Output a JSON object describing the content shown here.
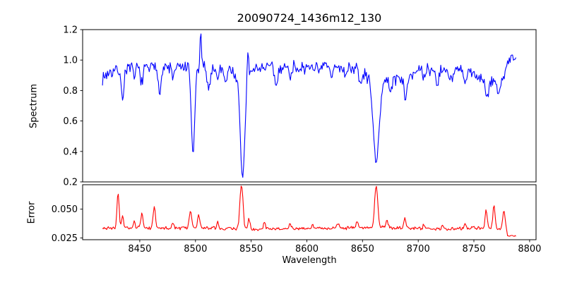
{
  "window": {
    "kind": "matplotlib-style-figure",
    "background": "#ffffff"
  },
  "chart_data": {
    "type": "line",
    "title": "20090724_1436m12_130",
    "xlabel": "Wavelength",
    "xlim": [
      8398.7,
      8805.8
    ],
    "xticks": [
      {
        "v": 8450,
        "label": "8450"
      },
      {
        "v": 8500,
        "label": "8500"
      },
      {
        "v": 8550,
        "label": "8550"
      },
      {
        "v": 8600,
        "label": "8600"
      },
      {
        "v": 8650,
        "label": "8650"
      },
      {
        "v": 8700,
        "label": "8700"
      },
      {
        "v": 8750,
        "label": "8750"
      },
      {
        "v": 8800,
        "label": "8800"
      }
    ],
    "grid": false,
    "legend": null,
    "panels": [
      {
        "name": "spectrum",
        "ylabel": "Spectrum",
        "yscale": "linear",
        "ylim": [
          0.2,
          1.2
        ],
        "yticks": [
          {
            "v": 0.2,
            "label": "0.2"
          },
          {
            "v": 0.4,
            "label": "0.4"
          },
          {
            "v": 0.6,
            "label": "0.6"
          },
          {
            "v": 0.8,
            "label": "0.8"
          },
          {
            "v": 1.0,
            "label": "1.0"
          },
          {
            "v": 1.2,
            "label": "1.2"
          }
        ],
        "color": "#0000ff",
        "series": {
          "description": "normalized stellar spectrum, noisy continuum near 1.0 with CaII-triplet absorption dips at 8498/8542/8662",
          "x_start": 8416.5,
          "x_end": 8788,
          "x_step": 0.75,
          "seed": 7,
          "noise_amp": 0.055,
          "continuum_keypoints": [
            [
              8416.5,
              0.88
            ],
            [
              8422,
              0.92
            ],
            [
              8435,
              0.94
            ],
            [
              8450,
              0.945
            ],
            [
              8470,
              0.95
            ],
            [
              8490,
              0.95
            ],
            [
              8510,
              0.945
            ],
            [
              8530,
              0.95
            ],
            [
              8550,
              0.955
            ],
            [
              8570,
              0.95
            ],
            [
              8590,
              0.955
            ],
            [
              8610,
              0.96
            ],
            [
              8630,
              0.955
            ],
            [
              8645,
              0.945
            ],
            [
              8658,
              0.92
            ],
            [
              8670,
              0.9
            ],
            [
              8682,
              0.88
            ],
            [
              8695,
              0.92
            ],
            [
              8710,
              0.935
            ],
            [
              8725,
              0.93
            ],
            [
              8740,
              0.925
            ],
            [
              8752,
              0.9
            ],
            [
              8765,
              0.875
            ],
            [
              8776,
              0.88
            ],
            [
              8781,
              1.0
            ],
            [
              8788,
              1.01
            ]
          ],
          "absorption_lines_center_depth_sigma": [
            [
              8434.5,
              0.22,
              1.0
            ],
            [
              8445,
              0.06,
              0.9
            ],
            [
              8452,
              0.1,
              1.0
            ],
            [
              8468,
              0.14,
              1.3
            ],
            [
              8480,
              0.07,
              1.0
            ],
            [
              8497.8,
              0.57,
              1.5
            ],
            [
              8512,
              0.14,
              1.2
            ],
            [
              8520,
              0.07,
              1.0
            ],
            [
              8527,
              0.09,
              1.1
            ],
            [
              8542.3,
              0.62,
              2.0
            ],
            [
              8542.3,
              0.1,
              5.5
            ],
            [
              8572.5,
              0.13,
              1.2
            ],
            [
              8585,
              0.06,
              1.0
            ],
            [
              8598,
              0.06,
              1.0
            ],
            [
              8611,
              0.07,
              1.0
            ],
            [
              8622,
              0.08,
              1.1
            ],
            [
              8634,
              0.05,
              1.0
            ],
            [
              8648.5,
              0.09,
              1.4
            ],
            [
              8662.3,
              0.52,
              2.4
            ],
            [
              8662.3,
              0.08,
              6.5
            ],
            [
              8675,
              0.07,
              1.5
            ],
            [
              8688.5,
              0.18,
              1.2
            ],
            [
              8705,
              0.06,
              1.0
            ],
            [
              8717,
              0.09,
              1.2
            ],
            [
              8730,
              0.07,
              1.1
            ],
            [
              8742,
              0.07,
              1.1
            ],
            [
              8762,
              0.13,
              1.8
            ],
            [
              8772,
              0.11,
              1.4
            ]
          ],
          "emission_spikes_center_height_sigma": [
            [
              8504.8,
              0.21,
              0.7
            ],
            [
              8547.0,
              0.22,
              0.7
            ]
          ]
        }
      },
      {
        "name": "error",
        "ylabel": "Error",
        "yscale": "log",
        "ylim": [
          0.024,
          0.09
        ],
        "yticks": [
          {
            "v": 0.05,
            "label": "0.050"
          },
          {
            "v": 0.025,
            "label": "0.025"
          }
        ],
        "color": "#ff0000",
        "series": {
          "description": "error spectrum, baseline ~0.032 with spikes at absorption-line wavelengths, drop to ~0.026 past 8780",
          "x_start": 8416.5,
          "x_end": 8788,
          "x_step": 0.75,
          "seed": 3,
          "noise_frac": 0.05,
          "baseline_keypoints": [
            [
              8416.5,
              0.032
            ],
            [
              8425,
              0.0315
            ],
            [
              8450,
              0.0318
            ],
            [
              8475,
              0.032
            ],
            [
              8500,
              0.0318
            ],
            [
              8530,
              0.0313
            ],
            [
              8560,
              0.0312
            ],
            [
              8590,
              0.0313
            ],
            [
              8620,
              0.0315
            ],
            [
              8650,
              0.0322
            ],
            [
              8665,
              0.0325
            ],
            [
              8680,
              0.0318
            ],
            [
              8700,
              0.0313
            ],
            [
              8730,
              0.0313
            ],
            [
              8755,
              0.0318
            ],
            [
              8770,
              0.0315
            ],
            [
              8779,
              0.03
            ],
            [
              8780.5,
              0.0262
            ],
            [
              8788,
              0.026
            ]
          ],
          "spikes_center_amplitude_sigma": [
            [
              8430.5,
              0.04,
              0.9
            ],
            [
              8434.5,
              0.011,
              0.8
            ],
            [
              8445,
              0.005,
              0.8
            ],
            [
              8452,
              0.013,
              0.9
            ],
            [
              8463,
              0.022,
              0.9
            ],
            [
              8480,
              0.004,
              0.8
            ],
            [
              8495.5,
              0.016,
              1.0
            ],
            [
              8503,
              0.012,
              0.9
            ],
            [
              8520,
              0.005,
              0.8
            ],
            [
              8541.3,
              0.057,
              1.2
            ],
            [
              8548,
              0.009,
              0.9
            ],
            [
              8562,
              0.005,
              0.8
            ],
            [
              8585,
              0.004,
              0.8
            ],
            [
              8605,
              0.004,
              0.8
            ],
            [
              8628,
              0.004,
              0.8
            ],
            [
              8645,
              0.005,
              0.9
            ],
            [
              8662.3,
              0.054,
              1.2
            ],
            [
              8672,
              0.007,
              0.8
            ],
            [
              8688,
              0.009,
              0.9
            ],
            [
              8705,
              0.003,
              0.8
            ],
            [
              8722,
              0.004,
              0.8
            ],
            [
              8742,
              0.004,
              0.8
            ],
            [
              8761,
              0.017,
              0.9
            ],
            [
              8768,
              0.022,
              0.9
            ],
            [
              8777,
              0.017,
              1.0
            ]
          ]
        }
      }
    ]
  }
}
